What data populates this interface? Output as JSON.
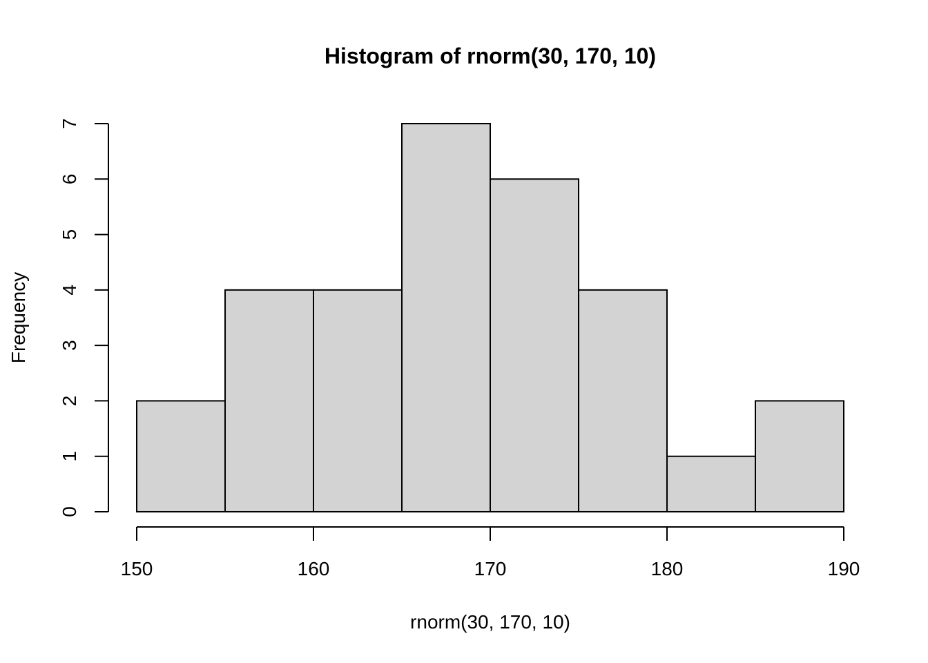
{
  "chart_data": {
    "type": "histogram",
    "title": "Histogram of rnorm(30, 170, 10)",
    "xlabel": "rnorm(30, 170, 10)",
    "ylabel": "Frequency",
    "bins": [
      {
        "from": 150,
        "to": 155,
        "count": 2
      },
      {
        "from": 155,
        "to": 160,
        "count": 4
      },
      {
        "from": 160,
        "to": 165,
        "count": 4
      },
      {
        "from": 165,
        "to": 170,
        "count": 7
      },
      {
        "from": 170,
        "to": 175,
        "count": 6
      },
      {
        "from": 175,
        "to": 180,
        "count": 4
      },
      {
        "from": 180,
        "to": 185,
        "count": 1
      },
      {
        "from": 185,
        "to": 190,
        "count": 2
      }
    ],
    "x_ticks": [
      150,
      160,
      170,
      180,
      190
    ],
    "y_ticks": [
      0,
      1,
      2,
      3,
      4,
      5,
      6,
      7
    ],
    "xlim": [
      150,
      190
    ],
    "ylim": [
      0,
      7
    ],
    "bar_color": "#d3d3d3",
    "grid": false
  }
}
